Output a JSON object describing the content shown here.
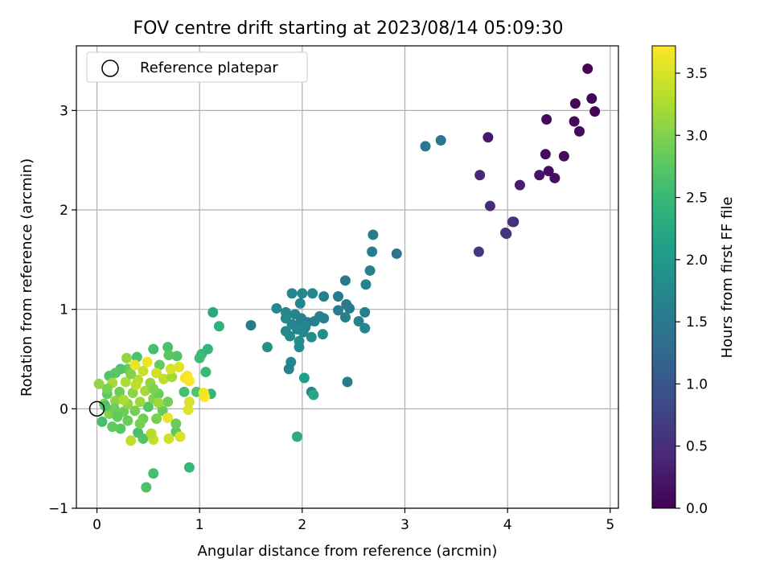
{
  "chart_data": {
    "type": "scatter",
    "title": "FOV centre drift starting at 2023/08/14 05:09:30",
    "xlabel": "Angular distance from reference (arcmin)",
    "ylabel": "Rotation from reference (arcmin)",
    "xlim": [
      -0.2,
      5.08
    ],
    "ylim": [
      -1.0,
      3.65
    ],
    "xticks": [
      0,
      1,
      2,
      3,
      4,
      5
    ],
    "yticks": [
      -1,
      0,
      1,
      2,
      3
    ],
    "grid": true,
    "legend": {
      "location": "upper-left",
      "entries": [
        "Reference platepar"
      ]
    },
    "reference_point": {
      "x": 0.0,
      "y": 0.0,
      "label": "Reference platepar"
    },
    "colorbar": {
      "label": "Hours from first FF file",
      "colormap": "viridis",
      "range": [
        0.0,
        3.72
      ],
      "ticks": [
        0.0,
        0.5,
        1.0,
        1.5,
        2.0,
        2.5,
        3.0,
        3.5
      ]
    },
    "colormap_stops": [
      "#440154",
      "#482878",
      "#3e4989",
      "#31688e",
      "#26828e",
      "#1f9e89",
      "#35b779",
      "#6ece58",
      "#b5de2b",
      "#fde725"
    ],
    "points": [
      {
        "x": 4.78,
        "y": 3.42,
        "t": 0.02
      },
      {
        "x": 4.82,
        "y": 3.12,
        "t": 0.03
      },
      {
        "x": 4.85,
        "y": 2.99,
        "t": 0.04
      },
      {
        "x": 4.66,
        "y": 3.07,
        "t": 0.05
      },
      {
        "x": 4.38,
        "y": 2.91,
        "t": 0.07
      },
      {
        "x": 4.65,
        "y": 2.89,
        "t": 0.08
      },
      {
        "x": 4.7,
        "y": 2.79,
        "t": 0.1
      },
      {
        "x": 4.37,
        "y": 2.56,
        "t": 0.11
      },
      {
        "x": 4.55,
        "y": 2.54,
        "t": 0.13
      },
      {
        "x": 4.4,
        "y": 2.39,
        "t": 0.15
      },
      {
        "x": 4.46,
        "y": 2.32,
        "t": 0.16
      },
      {
        "x": 4.31,
        "y": 2.35,
        "t": 0.2
      },
      {
        "x": 3.81,
        "y": 2.73,
        "t": 0.25
      },
      {
        "x": 4.12,
        "y": 2.25,
        "t": 0.3
      },
      {
        "x": 3.73,
        "y": 2.35,
        "t": 0.4
      },
      {
        "x": 3.83,
        "y": 2.04,
        "t": 0.45
      },
      {
        "x": 4.06,
        "y": 1.88,
        "t": 0.5
      },
      {
        "x": 4.05,
        "y": 1.88,
        "t": 0.52
      },
      {
        "x": 3.98,
        "y": 1.77,
        "t": 0.55
      },
      {
        "x": 3.99,
        "y": 1.76,
        "t": 0.56
      },
      {
        "x": 3.72,
        "y": 1.58,
        "t": 0.6
      },
      {
        "x": 3.35,
        "y": 2.7,
        "t": 1.45
      },
      {
        "x": 3.2,
        "y": 2.64,
        "t": 1.5
      },
      {
        "x": 2.92,
        "y": 1.56,
        "t": 1.47
      },
      {
        "x": 2.69,
        "y": 1.75,
        "t": 1.55
      },
      {
        "x": 2.68,
        "y": 1.58,
        "t": 1.6
      },
      {
        "x": 2.66,
        "y": 1.39,
        "t": 1.62
      },
      {
        "x": 2.42,
        "y": 1.29,
        "t": 1.5
      },
      {
        "x": 2.62,
        "y": 1.25,
        "t": 1.65
      },
      {
        "x": 2.35,
        "y": 1.13,
        "t": 1.52
      },
      {
        "x": 2.43,
        "y": 1.05,
        "t": 1.48
      },
      {
        "x": 2.46,
        "y": 1.01,
        "t": 1.55
      },
      {
        "x": 2.35,
        "y": 0.99,
        "t": 1.6
      },
      {
        "x": 2.61,
        "y": 0.97,
        "t": 1.58
      },
      {
        "x": 2.42,
        "y": 0.92,
        "t": 1.62
      },
      {
        "x": 2.55,
        "y": 0.88,
        "t": 1.65
      },
      {
        "x": 2.61,
        "y": 0.81,
        "t": 1.68
      },
      {
        "x": 2.21,
        "y": 1.13,
        "t": 1.6
      },
      {
        "x": 2.1,
        "y": 1.16,
        "t": 1.7
      },
      {
        "x": 2.0,
        "y": 1.16,
        "t": 1.75
      },
      {
        "x": 1.9,
        "y": 1.16,
        "t": 1.72
      },
      {
        "x": 1.98,
        "y": 1.06,
        "t": 1.68
      },
      {
        "x": 1.75,
        "y": 1.01,
        "t": 1.75
      },
      {
        "x": 1.84,
        "y": 0.97,
        "t": 1.73
      },
      {
        "x": 1.93,
        "y": 0.95,
        "t": 1.7
      },
      {
        "x": 1.84,
        "y": 0.91,
        "t": 1.78
      },
      {
        "x": 1.99,
        "y": 0.91,
        "t": 1.66
      },
      {
        "x": 2.17,
        "y": 0.93,
        "t": 1.62
      },
      {
        "x": 2.21,
        "y": 0.91,
        "t": 1.64
      },
      {
        "x": 2.12,
        "y": 0.88,
        "t": 1.66
      },
      {
        "x": 2.05,
        "y": 0.87,
        "t": 1.6
      },
      {
        "x": 1.98,
        "y": 0.86,
        "t": 1.62
      },
      {
        "x": 1.9,
        "y": 0.85,
        "t": 1.68
      },
      {
        "x": 2.03,
        "y": 0.82,
        "t": 1.7
      },
      {
        "x": 1.95,
        "y": 0.8,
        "t": 1.72
      },
      {
        "x": 2.01,
        "y": 0.77,
        "t": 1.74
      },
      {
        "x": 1.84,
        "y": 0.78,
        "t": 1.76
      },
      {
        "x": 1.88,
        "y": 0.73,
        "t": 1.78
      },
      {
        "x": 2.09,
        "y": 0.72,
        "t": 1.8
      },
      {
        "x": 2.2,
        "y": 0.75,
        "t": 1.82
      },
      {
        "x": 1.97,
        "y": 0.68,
        "t": 1.84
      },
      {
        "x": 1.97,
        "y": 0.62,
        "t": 1.8
      },
      {
        "x": 1.66,
        "y": 0.62,
        "t": 1.86
      },
      {
        "x": 1.5,
        "y": 0.84,
        "t": 1.55
      },
      {
        "x": 1.89,
        "y": 0.47,
        "t": 1.75
      },
      {
        "x": 1.87,
        "y": 0.4,
        "t": 1.65
      },
      {
        "x": 2.44,
        "y": 0.27,
        "t": 1.55
      },
      {
        "x": 2.09,
        "y": 0.17,
        "t": 1.7
      },
      {
        "x": 2.02,
        "y": 0.31,
        "t": 2.1
      },
      {
        "x": 2.11,
        "y": 0.14,
        "t": 2.2
      },
      {
        "x": 1.95,
        "y": -0.28,
        "t": 2.3
      },
      {
        "x": 1.13,
        "y": 0.97,
        "t": 2.25
      },
      {
        "x": 1.19,
        "y": 0.83,
        "t": 2.4
      },
      {
        "x": 1.08,
        "y": 0.6,
        "t": 2.45
      },
      {
        "x": 1.02,
        "y": 0.55,
        "t": 2.5
      },
      {
        "x": 1.0,
        "y": 0.51,
        "t": 2.55
      },
      {
        "x": 1.06,
        "y": 0.37,
        "t": 2.5
      },
      {
        "x": 1.11,
        "y": 0.15,
        "t": 2.45
      },
      {
        "x": 0.9,
        "y": -0.59,
        "t": 2.5
      },
      {
        "x": 0.55,
        "y": -0.65,
        "t": 2.6
      },
      {
        "x": 0.48,
        "y": -0.79,
        "t": 2.65
      },
      {
        "x": 0.97,
        "y": 0.17,
        "t": 2.7
      },
      {
        "x": 0.85,
        "y": 0.17,
        "t": 2.6
      },
      {
        "x": 0.78,
        "y": 0.53,
        "t": 2.7
      },
      {
        "x": 0.69,
        "y": 0.62,
        "t": 2.65
      },
      {
        "x": 0.55,
        "y": 0.6,
        "t": 2.6
      },
      {
        "x": 0.7,
        "y": 0.54,
        "t": 2.75
      },
      {
        "x": 0.39,
        "y": 0.52,
        "t": 2.65
      },
      {
        "x": 0.61,
        "y": 0.44,
        "t": 2.8
      },
      {
        "x": 0.3,
        "y": 0.4,
        "t": 2.85
      },
      {
        "x": 0.23,
        "y": 0.4,
        "t": 2.7
      },
      {
        "x": 0.18,
        "y": 0.36,
        "t": 2.75
      },
      {
        "x": 0.12,
        "y": 0.33,
        "t": 2.7
      },
      {
        "x": 0.4,
        "y": -0.24,
        "t": 2.65
      },
      {
        "x": 0.45,
        "y": -0.3,
        "t": 2.7
      },
      {
        "x": 0.77,
        "y": -0.23,
        "t": 2.8
      },
      {
        "x": 0.77,
        "y": -0.15,
        "t": 2.85
      },
      {
        "x": 0.23,
        "y": -0.2,
        "t": 2.75
      },
      {
        "x": 0.15,
        "y": -0.18,
        "t": 2.8
      },
      {
        "x": 0.05,
        "y": -0.13,
        "t": 2.6
      },
      {
        "x": 0.3,
        "y": -0.12,
        "t": 2.85
      },
      {
        "x": 0.45,
        "y": -0.1,
        "t": 2.9
      },
      {
        "x": 0.58,
        "y": -0.1,
        "t": 2.95
      },
      {
        "x": 0.12,
        "y": -0.05,
        "t": 3.0
      },
      {
        "x": 0.26,
        "y": -0.03,
        "t": 2.9
      },
      {
        "x": 0.37,
        "y": -0.02,
        "t": 2.95
      },
      {
        "x": 0.5,
        "y": 0.02,
        "t": 2.7
      },
      {
        "x": 0.64,
        "y": -0.02,
        "t": 2.85
      },
      {
        "x": 0.07,
        "y": 0.05,
        "t": 3.0
      },
      {
        "x": 0.18,
        "y": 0.08,
        "t": 3.05
      },
      {
        "x": 0.3,
        "y": 0.05,
        "t": 3.1
      },
      {
        "x": 0.42,
        "y": 0.07,
        "t": 3.15
      },
      {
        "x": 0.55,
        "y": 0.1,
        "t": 3.0
      },
      {
        "x": 0.69,
        "y": 0.07,
        "t": 2.9
      },
      {
        "x": 0.1,
        "y": 0.15,
        "t": 2.8
      },
      {
        "x": 0.22,
        "y": 0.17,
        "t": 2.9
      },
      {
        "x": 0.35,
        "y": 0.16,
        "t": 3.05
      },
      {
        "x": 0.47,
        "y": 0.18,
        "t": 3.2
      },
      {
        "x": 0.6,
        "y": 0.15,
        "t": 2.85
      },
      {
        "x": 0.02,
        "y": 0.25,
        "t": 3.1
      },
      {
        "x": 0.15,
        "y": 0.26,
        "t": 3.2
      },
      {
        "x": 0.28,
        "y": 0.27,
        "t": 3.25
      },
      {
        "x": 0.4,
        "y": 0.29,
        "t": 3.3
      },
      {
        "x": 0.52,
        "y": 0.26,
        "t": 3.1
      },
      {
        "x": 0.65,
        "y": 0.3,
        "t": 3.35
      },
      {
        "x": 0.73,
        "y": 0.32,
        "t": 3.2
      },
      {
        "x": 0.1,
        "y": 0.2,
        "t": 2.95
      },
      {
        "x": 0.33,
        "y": 0.35,
        "t": 3.0
      },
      {
        "x": 0.45,
        "y": 0.38,
        "t": 3.4
      },
      {
        "x": 0.58,
        "y": 0.36,
        "t": 3.45
      },
      {
        "x": 0.72,
        "y": 0.4,
        "t": 3.5
      },
      {
        "x": 0.8,
        "y": 0.42,
        "t": 3.55
      },
      {
        "x": 0.37,
        "y": 0.44,
        "t": 3.6
      },
      {
        "x": 0.49,
        "y": 0.47,
        "t": 3.62
      },
      {
        "x": 0.29,
        "y": 0.51,
        "t": 3.1
      },
      {
        "x": 0.86,
        "y": 0.31,
        "t": 3.65
      },
      {
        "x": 0.88,
        "y": 0.33,
        "t": 3.68
      },
      {
        "x": 0.9,
        "y": 0.28,
        "t": 3.7
      },
      {
        "x": 0.69,
        "y": -0.09,
        "t": 3.6
      },
      {
        "x": 0.89,
        "y": -0.01,
        "t": 3.55
      },
      {
        "x": 0.9,
        "y": 0.07,
        "t": 3.5
      },
      {
        "x": 1.05,
        "y": 0.12,
        "t": 3.72
      },
      {
        "x": 1.04,
        "y": 0.16,
        "t": 3.65
      },
      {
        "x": 0.55,
        "y": -0.31,
        "t": 3.4
      },
      {
        "x": 0.7,
        "y": -0.3,
        "t": 3.45
      },
      {
        "x": 0.81,
        "y": -0.28,
        "t": 3.5
      },
      {
        "x": 0.53,
        "y": -0.25,
        "t": 3.3
      },
      {
        "x": 0.33,
        "y": -0.32,
        "t": 3.35
      },
      {
        "x": 0.26,
        "y": 0.09,
        "t": 3.25
      },
      {
        "x": 0.6,
        "y": 0.06,
        "t": 3.15
      },
      {
        "x": 0.17,
        "y": 0.0,
        "t": 2.9
      },
      {
        "x": 0.08,
        "y": 0.03,
        "t": 2.7
      },
      {
        "x": 0.38,
        "y": 0.24,
        "t": 3.35
      },
      {
        "x": 0.55,
        "y": 0.2,
        "t": 3.0
      },
      {
        "x": 0.2,
        "y": -0.08,
        "t": 2.8
      },
      {
        "x": 0.42,
        "y": -0.15,
        "t": 2.95
      }
    ]
  }
}
